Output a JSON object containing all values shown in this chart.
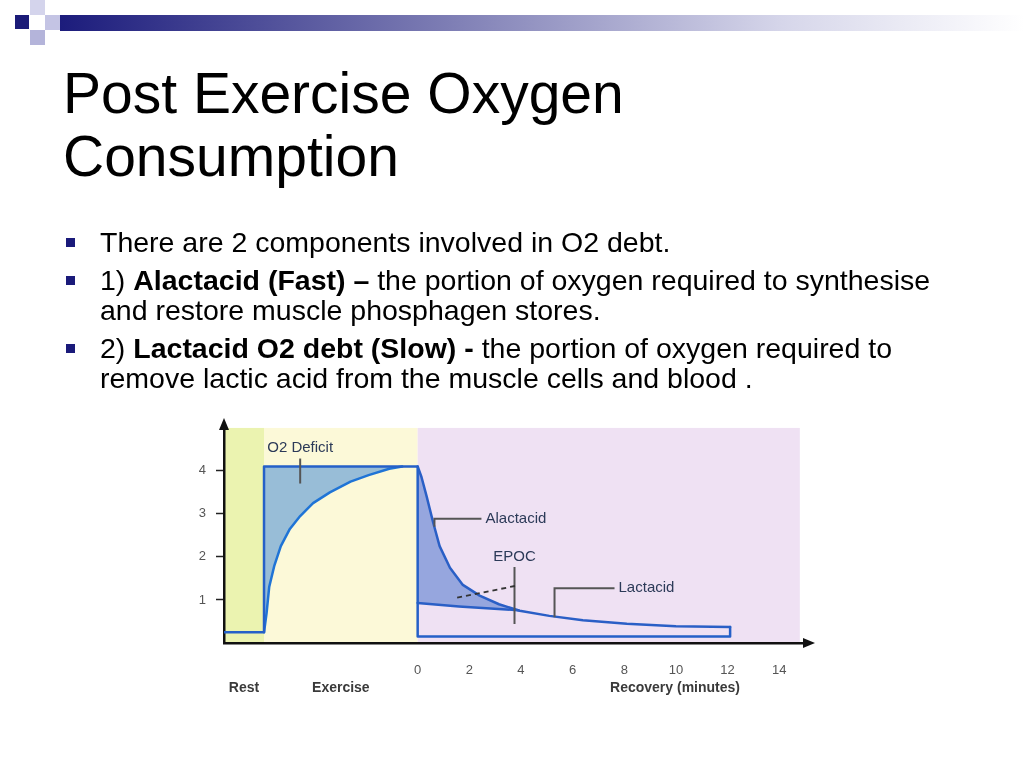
{
  "chart_data": {
    "type": "line",
    "title": "Post Exercise Oxygen Consumption",
    "annotations": [
      "There are 2 components involved in O2 debt.",
      "1) Alactacid (Fast) – the portion of oxygen required to synthesise and restore muscle phosphagen stores.",
      "2) Lactacid O2 debt (Slow) - the portion of oxygen required to remove lactic acid from the muscle cells and blood .",
      {
        "text": "O2 Deficit",
        "x": -4.55,
        "y": 4.1
      },
      {
        "text": "Alactacid",
        "x": 0.65,
        "y": 2.7
      },
      {
        "text": "EPOC",
        "x": 3.75,
        "y": 0.79
      },
      {
        "text": "Lactacid",
        "x": 5.3,
        "y": 0.6
      }
    ],
    "xlabel": "Recovery (minutes)",
    "series": [
      {
        "color": "#2560c8",
        "x": [
          -7.5,
          -5.95,
          -5.95,
          0,
          0,
          12.1,
          12.1
        ],
        "values": [
          0.25,
          0.25,
          4.1,
          4.1,
          0.15,
          0.15,
          0.37
        ]
      },
      {
        "color": "#1f74d6",
        "x": [
          -5.95,
          -5.85,
          -5.75,
          -5.55,
          -5.3,
          -4.95,
          -4.55,
          -4.05,
          -3.4,
          -2.6,
          -1.9,
          -1.1,
          -0.6
        ],
        "values": [
          0.25,
          0.7,
          1.3,
          1.8,
          2.25,
          2.65,
          2.95,
          3.25,
          3.5,
          3.75,
          3.9,
          4.05,
          4.1
        ],
        "lower": [
          0.25,
          0.7,
          1.3,
          1.8,
          2.25,
          2.65,
          2.95,
          3.25,
          3.5,
          3.75,
          3.9,
          4.05,
          4.1
        ],
        "upper": [
          4.1,
          4.1,
          4.1,
          4.1,
          4.1,
          4.1,
          4.1,
          4.1,
          4.1,
          4.1,
          4.1,
          4.1,
          4.1
        ]
      },
      {
        "color": "#2a5fc6",
        "x": [
          0,
          0.15,
          0.35,
          0.6,
          0.85,
          1.25,
          1.75,
          2.4,
          3.15,
          3.95,
          5.1,
          6.4,
          8.1,
          10,
          12.1
        ],
        "values": [
          4.1,
          3.85,
          3.4,
          2.8,
          2.25,
          1.75,
          1.35,
          1.1,
          0.9,
          0.75,
          0.63,
          0.53,
          0.45,
          0.39,
          0.37
        ],
        "lower": [
          0.93,
          0.92,
          0.91,
          0.9,
          0.89,
          0.87,
          0.85,
          0.81,
          0.78,
          0.75,
          0.63,
          0.53,
          0.45,
          0.39,
          0.37
        ],
        "upper": [
          4.1,
          3.85,
          3.4,
          2.8,
          2.25,
          1.75,
          1.35,
          1.1,
          0.9,
          0.75,
          0.63,
          0.53,
          0.45,
          0.39,
          0.37
        ]
      },
      {
        "color": "#2a5fc6",
        "x": [
          0,
          1.6,
          3.9
        ],
        "values": [
          0.93,
          0.85,
          0.76
        ]
      }
    ],
    "xlim": [
      -7.5,
      15
    ],
    "xticks": [
      0,
      2,
      4,
      6,
      8,
      10,
      12,
      14
    ],
    "ylim": [
      0,
      5
    ],
    "yticks": [
      1,
      2,
      3,
      4
    ],
    "bands": [
      {
        "axis": "x",
        "from": -7.5,
        "to": -5.95,
        "label": "Rest",
        "color": "#ebf3b0"
      },
      {
        "axis": "x",
        "from": -5.95,
        "to": 0,
        "label": "Exercise",
        "color": "#fcf9d8"
      },
      {
        "axis": "x",
        "from": 0,
        "to": 14.8,
        "color": "#efe1f3"
      }
    ]
  }
}
